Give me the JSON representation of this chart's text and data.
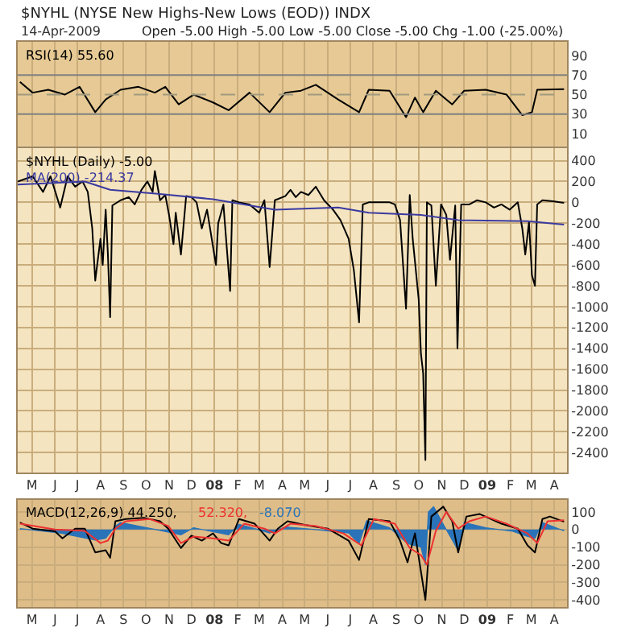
{
  "chart_data": [
    {
      "type": "line",
      "title": "$NYHL (NYSE New Highs-New Lows (EOD)) INDX",
      "subtitle": "14-Apr-2009",
      "annotations": [
        "Open -5.00 High -5.00 Low -5.00 Close -5.00 Chg -1.00 (-25.00%)"
      ],
      "xlim": [
        "2007-04-12",
        "2009-04-18"
      ],
      "xticks": [
        {
          "value": "2007-05-01",
          "label": null
        },
        {
          "value": "2007-06-01",
          "label": null
        },
        {
          "value": "2007-07-01",
          "label": null
        },
        {
          "value": "2007-08-01",
          "label": null
        },
        {
          "value": "2007-09-01",
          "label": null
        },
        {
          "value": "2007-10-01",
          "label": null
        },
        {
          "value": "2007-11-01",
          "label": null
        },
        {
          "value": "2007-12-01",
          "label": null
        },
        {
          "value": "2008-01-01",
          "label": null
        },
        {
          "value": "2008-02-01",
          "label": null
        },
        {
          "value": "2008-03-01",
          "label": null
        },
        {
          "value": "2008-04-01",
          "label": null
        },
        {
          "value": "2008-05-01",
          "label": null
        },
        {
          "value": "2008-06-01",
          "label": null
        },
        {
          "value": "2008-07-01",
          "label": null
        },
        {
          "value": "2008-08-01",
          "label": null
        },
        {
          "value": "2008-09-01",
          "label": null
        },
        {
          "value": "2008-10-01",
          "label": null
        },
        {
          "value": "2008-11-01",
          "label": null
        },
        {
          "value": "2008-12-01",
          "label": null
        },
        {
          "value": "2009-01-01",
          "label": null
        },
        {
          "value": "2009-02-01",
          "label": null
        },
        {
          "value": "2009-03-01",
          "label": null
        },
        {
          "value": "2009-04-01",
          "label": null
        }
      ],
      "ylim": [
        -3,
        104
      ],
      "yticks": [
        10,
        30,
        50,
        70,
        90
      ],
      "grid": "x",
      "legend": "top left",
      "tick_labels": "y",
      "ref_lines": [
        {
          "axis": "y",
          "value": 70,
          "color": "#808080"
        },
        {
          "axis": "y",
          "value": 30,
          "color": "#808080"
        },
        {
          "axis": "y",
          "value": 50,
          "color": "#a09a80",
          "line_style": "dashed"
        }
      ],
      "series": [
        {
          "name": "RSI(14) 55.60",
          "color": "#000000",
          "x": [
            "2007-04-15",
            "2007-05-02",
            "2007-05-23",
            "2007-06-14",
            "2007-07-04",
            "2007-07-25",
            "2007-08-08",
            "2007-08-28",
            "2007-09-21",
            "2007-10-13",
            "2007-10-27",
            "2007-11-14",
            "2007-12-04",
            "2007-12-30",
            "2008-01-20",
            "2008-02-17",
            "2008-03-15",
            "2008-04-05",
            "2008-04-26",
            "2008-05-16",
            "2008-06-15",
            "2008-07-13",
            "2008-07-26",
            "2008-08-23",
            "2008-09-14",
            "2008-09-26",
            "2008-10-07",
            "2008-10-24",
            "2008-11-15",
            "2008-12-01",
            "2008-12-30",
            "2009-01-27",
            "2009-02-17",
            "2009-03-02",
            "2009-03-09",
            "2009-04-14"
          ],
          "values": [
            63,
            52,
            55,
            50,
            58,
            32,
            45,
            55,
            58,
            52,
            58,
            40,
            50,
            42,
            34,
            52,
            32,
            52,
            54,
            60,
            45,
            32,
            55,
            54,
            27,
            47,
            32,
            54,
            40,
            54,
            55,
            50,
            29,
            32,
            55,
            55.6
          ]
        }
      ]
    },
    {
      "type": "line",
      "xlim": [
        "2007-04-12",
        "2009-04-18"
      ],
      "xticks": [
        {
          "value": "2007-05-01",
          "label": "M"
        },
        {
          "value": "2007-06-01",
          "label": "J"
        },
        {
          "value": "2007-07-01",
          "label": "J"
        },
        {
          "value": "2007-08-01",
          "label": "A"
        },
        {
          "value": "2007-09-01",
          "label": "S"
        },
        {
          "value": "2007-10-01",
          "label": "O"
        },
        {
          "value": "2007-11-01",
          "label": "N"
        },
        {
          "value": "2007-12-01",
          "label": "D"
        },
        {
          "value": "2008-01-01",
          "label": "08"
        },
        {
          "value": "2008-02-01",
          "label": "F"
        },
        {
          "value": "2008-03-01",
          "label": "M"
        },
        {
          "value": "2008-04-01",
          "label": "A"
        },
        {
          "value": "2008-05-01",
          "label": "M"
        },
        {
          "value": "2008-06-01",
          "label": "J"
        },
        {
          "value": "2008-07-01",
          "label": "J"
        },
        {
          "value": "2008-08-01",
          "label": "A"
        },
        {
          "value": "2008-09-01",
          "label": "S"
        },
        {
          "value": "2008-10-01",
          "label": "O"
        },
        {
          "value": "2008-11-01",
          "label": "N"
        },
        {
          "value": "2008-12-01",
          "label": "D"
        },
        {
          "value": "2009-01-01",
          "label": "09"
        },
        {
          "value": "2009-02-01",
          "label": "F"
        },
        {
          "value": "2009-03-01",
          "label": "M"
        },
        {
          "value": "2009-04-01",
          "label": "A"
        }
      ],
      "ylim": [
        -2590,
        520
      ],
      "yticks": [
        -2400,
        -2200,
        -2000,
        -1800,
        -1600,
        -1400,
        -1200,
        -1000,
        -800,
        -600,
        -400,
        -200,
        0,
        200,
        400
      ],
      "grid": true,
      "legend": "top left",
      "series": [
        {
          "name": "$NYHL (Daily) -5.00",
          "color": "#000000",
          "x": [
            "2007-04-12",
            "2007-05-02",
            "2007-05-16",
            "2007-05-26",
            "2007-06-08",
            "2007-06-18",
            "2007-06-28",
            "2007-07-08",
            "2007-07-15",
            "2007-07-21",
            "2007-07-25",
            "2007-08-01",
            "2007-08-04",
            "2007-08-08",
            "2007-08-11",
            "2007-08-14",
            "2007-08-17",
            "2007-08-28",
            "2007-09-08",
            "2007-09-16",
            "2007-09-25",
            "2007-10-03",
            "2007-10-10",
            "2007-10-13",
            "2007-10-20",
            "2007-10-27",
            "2007-11-01",
            "2007-11-07",
            "2007-11-10",
            "2007-11-17",
            "2007-11-24",
            "2007-12-01",
            "2007-12-08",
            "2007-12-15",
            "2007-12-22",
            "2008-01-03",
            "2008-01-06",
            "2008-01-13",
            "2008-01-22",
            "2008-01-25",
            "2008-02-03",
            "2008-02-17",
            "2008-03-01",
            "2008-03-08",
            "2008-03-15",
            "2008-03-22",
            "2008-04-05",
            "2008-04-12",
            "2008-04-19",
            "2008-04-26",
            "2008-05-06",
            "2008-05-16",
            "2008-05-27",
            "2008-06-08",
            "2008-06-18",
            "2008-06-29",
            "2008-07-06",
            "2008-07-13",
            "2008-07-18",
            "2008-07-26",
            "2008-08-09",
            "2008-08-23",
            "2008-08-30",
            "2008-09-06",
            "2008-09-14",
            "2008-09-19",
            "2008-09-23",
            "2008-10-01",
            "2008-10-04",
            "2008-10-07",
            "2008-10-10",
            "2008-10-12",
            "2008-10-18",
            "2008-10-24",
            "2008-10-31",
            "2008-11-07",
            "2008-11-12",
            "2008-11-19",
            "2008-11-22",
            "2008-11-27",
            "2008-12-08",
            "2008-12-18",
            "2008-12-30",
            "2009-01-10",
            "2009-01-20",
            "2009-01-31",
            "2009-02-11",
            "2009-02-17",
            "2009-02-21",
            "2009-02-26",
            "2009-03-02",
            "2009-03-06",
            "2009-03-09",
            "2009-03-16",
            "2009-03-30",
            "2009-04-14"
          ],
          "values": [
            200,
            250,
            100,
            250,
            -50,
            250,
            150,
            200,
            100,
            -250,
            -750,
            -350,
            -600,
            -70,
            -500,
            -1100,
            -30,
            20,
            50,
            -20,
            120,
            200,
            100,
            300,
            20,
            70,
            -120,
            -400,
            -100,
            -500,
            60,
            50,
            0,
            -250,
            -70,
            -600,
            -200,
            -20,
            -850,
            20,
            0,
            -20,
            -100,
            20,
            -620,
            20,
            60,
            120,
            50,
            100,
            70,
            150,
            20,
            -70,
            -170,
            -350,
            -650,
            -1150,
            -20,
            0,
            0,
            0,
            -20,
            -170,
            -1020,
            70,
            -350,
            -930,
            -1450,
            -1640,
            -2470,
            0,
            -30,
            -800,
            -20,
            -120,
            -550,
            -30,
            -1400,
            -20,
            -20,
            20,
            0,
            -50,
            -20,
            -70,
            0,
            -250,
            -500,
            -190,
            -700,
            -800,
            -20,
            20,
            10,
            -5
          ]
        },
        {
          "name": "MA(200) -214.37",
          "color": "#3a3aa0",
          "x": [
            "2007-04-12",
            "2007-07-11",
            "2007-08-14",
            "2007-10-20",
            "2007-12-30",
            "2008-03-22",
            "2008-06-15",
            "2008-07-26",
            "2008-10-04",
            "2008-11-23",
            "2009-02-24",
            "2009-04-14"
          ],
          "values": [
            170,
            200,
            120,
            80,
            30,
            -70,
            -50,
            -100,
            -120,
            -170,
            -180,
            -214.37
          ]
        }
      ]
    },
    {
      "type": "line",
      "xlim": [
        "2007-04-12",
        "2009-04-18"
      ],
      "xticks": [
        {
          "value": "2007-05-01",
          "label": "M"
        },
        {
          "value": "2007-06-01",
          "label": "J"
        },
        {
          "value": "2007-07-01",
          "label": "J"
        },
        {
          "value": "2007-08-01",
          "label": "A"
        },
        {
          "value": "2007-09-01",
          "label": "S"
        },
        {
          "value": "2007-10-01",
          "label": "O"
        },
        {
          "value": "2007-11-01",
          "label": "N"
        },
        {
          "value": "2007-12-01",
          "label": "D"
        },
        {
          "value": "2008-01-01",
          "label": "08"
        },
        {
          "value": "2008-02-01",
          "label": "F"
        },
        {
          "value": "2008-03-01",
          "label": "M"
        },
        {
          "value": "2008-04-01",
          "label": "A"
        },
        {
          "value": "2008-05-01",
          "label": "M"
        },
        {
          "value": "2008-06-01",
          "label": "J"
        },
        {
          "value": "2008-07-01",
          "label": "J"
        },
        {
          "value": "2008-08-01",
          "label": "A"
        },
        {
          "value": "2008-09-01",
          "label": "S"
        },
        {
          "value": "2008-10-01",
          "label": "O"
        },
        {
          "value": "2008-11-01",
          "label": "N"
        },
        {
          "value": "2008-12-01",
          "label": "D"
        },
        {
          "value": "2009-01-01",
          "label": "09"
        },
        {
          "value": "2009-02-01",
          "label": "F"
        },
        {
          "value": "2009-03-01",
          "label": "M"
        },
        {
          "value": "2009-04-01",
          "label": "A"
        }
      ],
      "ylim": [
        -440,
        170
      ],
      "yticks": [
        -400,
        -300,
        -200,
        -100,
        0,
        100
      ],
      "grid": true,
      "legend": "top left",
      "series": [
        {
          "name": "-8.070",
          "type": "area",
          "color": "#2a73b8",
          "x": [
            "2007-04-15",
            "2007-06-08",
            "2007-07-25",
            "2007-08-08",
            "2007-08-21",
            "2007-08-28",
            "2007-10-20",
            "2007-11-17",
            "2007-12-04",
            "2008-01-20",
            "2008-02-03",
            "2008-02-24",
            "2008-03-15",
            "2008-04-05",
            "2008-05-16",
            "2008-06-29",
            "2008-07-13",
            "2008-07-23",
            "2008-08-23",
            "2008-09-16",
            "2008-10-04",
            "2008-10-10",
            "2008-10-14",
            "2008-10-21",
            "2008-11-03",
            "2008-11-23",
            "2008-12-01",
            "2008-12-30",
            "2009-02-04",
            "2009-02-24",
            "2009-03-06",
            "2009-03-16",
            "2009-04-14"
          ],
          "values": [
            5,
            -20,
            -60,
            -50,
            20,
            40,
            -5,
            -30,
            10,
            -30,
            30,
            5,
            -20,
            15,
            0,
            -20,
            -80,
            50,
            10,
            -80,
            -100,
            -200,
            100,
            130,
            30,
            -120,
            40,
            10,
            -10,
            -40,
            -50,
            40,
            -8.07
          ]
        },
        {
          "name": "MACD(12,26,9) 44.250,",
          "color": "#000000",
          "x": [
            "2007-04-15",
            "2007-05-02",
            "2007-06-01",
            "2007-06-11",
            "2007-06-28",
            "2007-07-11",
            "2007-07-25",
            "2007-08-08",
            "2007-08-14",
            "2007-08-21",
            "2007-09-04",
            "2007-09-29",
            "2007-10-20",
            "2007-10-31",
            "2007-11-17",
            "2007-12-01",
            "2007-12-15",
            "2007-12-30",
            "2008-01-10",
            "2008-01-20",
            "2008-02-03",
            "2008-02-24",
            "2008-03-15",
            "2008-03-26",
            "2008-04-08",
            "2008-05-02",
            "2008-06-01",
            "2008-06-29",
            "2008-07-13",
            "2008-07-26",
            "2008-08-23",
            "2008-09-06",
            "2008-09-16",
            "2008-09-26",
            "2008-10-10",
            "2008-10-18",
            "2008-11-03",
            "2008-11-15",
            "2008-11-23",
            "2008-12-04",
            "2008-12-22",
            "2009-01-20",
            "2009-02-11",
            "2009-02-24",
            "2009-03-06",
            "2009-03-16",
            "2009-03-26",
            "2009-04-14"
          ],
          "values": [
            40,
            5,
            -10,
            -50,
            5,
            5,
            -130,
            -118,
            -160,
            47,
            60,
            66,
            47,
            5,
            -105,
            -35,
            -63,
            -22,
            -77,
            -90,
            60,
            33,
            -63,
            5,
            47,
            25,
            5,
            -63,
            -173,
            60,
            47,
            -63,
            -186,
            -22,
            -400,
            74,
            130,
            47,
            -130,
            74,
            88,
            33,
            5,
            -90,
            -130,
            60,
            74,
            44.25
          ]
        },
        {
          "name": "52.320,",
          "color": "#ee3030",
          "x": [
            "2007-04-15",
            "2007-06-01",
            "2007-07-11",
            "2007-08-01",
            "2007-08-11",
            "2007-08-21",
            "2007-09-04",
            "2007-10-06",
            "2007-10-31",
            "2007-11-17",
            "2007-12-04",
            "2007-12-30",
            "2008-01-20",
            "2008-02-10",
            "2008-03-08",
            "2008-03-22",
            "2008-04-12",
            "2008-05-16",
            "2008-06-22",
            "2008-07-16",
            "2008-08-02",
            "2008-08-30",
            "2008-09-19",
            "2008-10-04",
            "2008-10-12",
            "2008-10-24",
            "2008-11-07",
            "2008-11-23",
            "2008-12-08",
            "2008-12-30",
            "2009-01-27",
            "2009-02-24",
            "2009-03-09",
            "2009-03-23",
            "2009-04-14"
          ],
          "values": [
            33,
            0,
            -8,
            -77,
            -63,
            5,
            47,
            60,
            20,
            -77,
            -40,
            -50,
            -63,
            33,
            5,
            -22,
            33,
            20,
            -22,
            -90,
            60,
            33,
            -105,
            -145,
            -200,
            -8,
            100,
            5,
            47,
            74,
            33,
            -22,
            -77,
            47,
            52.32
          ]
        }
      ]
    }
  ]
}
